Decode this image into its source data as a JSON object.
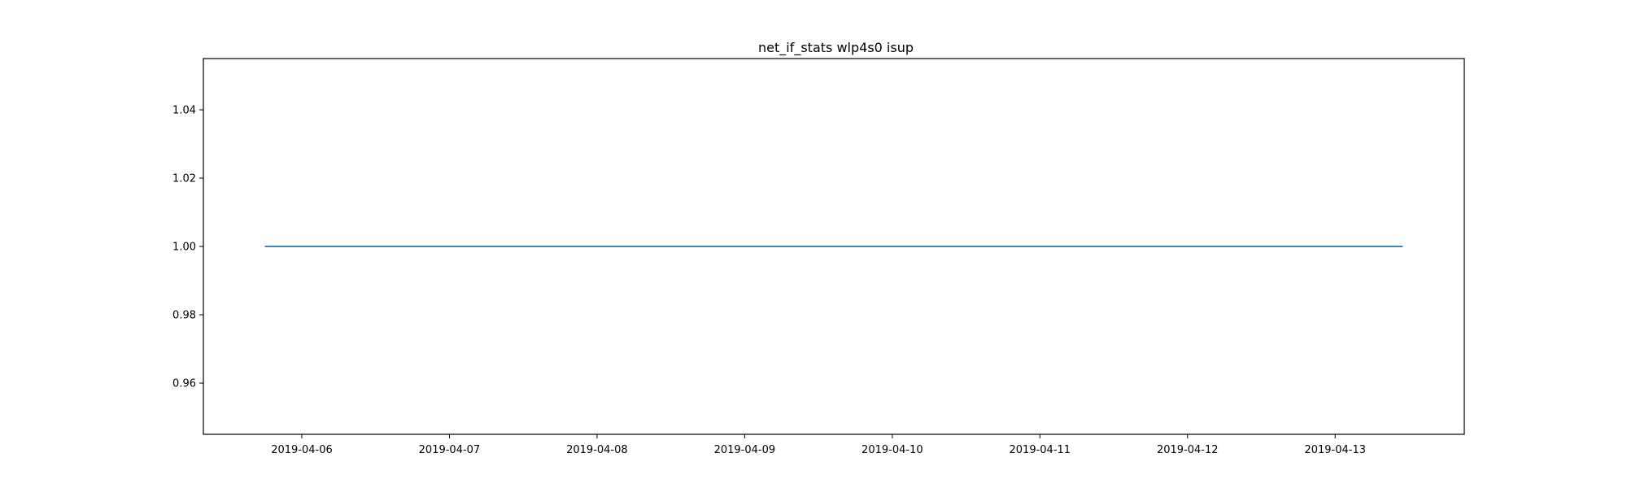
{
  "chart_data": {
    "type": "line",
    "title": "net_if_stats wlp4s0 isup",
    "xlabel": "",
    "ylabel": "",
    "x_ticks": [
      "2019-04-06",
      "2019-04-07",
      "2019-04-08",
      "2019-04-09",
      "2019-04-10",
      "2019-04-11",
      "2019-04-12",
      "2019-04-13"
    ],
    "y_ticks": [
      0.96,
      0.98,
      1.0,
      1.02,
      1.04
    ],
    "y_tick_labels": [
      "0.96",
      "0.98",
      "1.00",
      "1.02",
      "1.04"
    ],
    "xlim": [
      "2019-04-05T08:00",
      "2019-04-13T21:00"
    ],
    "ylim": [
      0.945,
      1.055
    ],
    "grid": false,
    "series": [
      {
        "color": "#1f77b4",
        "x": [
          "2019-04-05T18:00",
          "2019-04-13T11:00"
        ],
        "y": [
          1,
          1
        ]
      }
    ]
  }
}
